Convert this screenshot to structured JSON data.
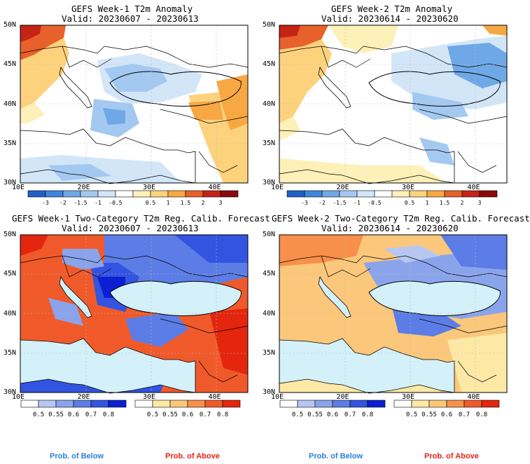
{
  "panels": [
    {
      "id": "p1",
      "title": "GEFS Week-1 T2m Anomaly",
      "valid": "Valid: 20230607 - 20230613"
    },
    {
      "id": "p2",
      "title": "GEFS Week-2 T2m Anomaly",
      "valid": "Valid: 20230614 - 20230620"
    },
    {
      "id": "p3",
      "title": "GEFS Week-1 Two-Category T2m Reg. Calib. Forecast",
      "valid": "Valid: 20230607 - 20230613"
    },
    {
      "id": "p4",
      "title": "GEFS Week-2 Two-Category T2m Reg. Calib. Forecast",
      "valid": "Valid: 20230614 - 20230620"
    }
  ],
  "lat_labels": [
    "50N",
    "45N",
    "40N",
    "35N",
    "30N"
  ],
  "lon_labels": [
    "10E",
    "20E",
    "30E",
    "40E"
  ],
  "anomaly_colorbar": {
    "labels": [
      "-3",
      "-2",
      "-1.5",
      "-1",
      "-0.5",
      "0.5",
      "1",
      "1.5",
      "2",
      "3"
    ],
    "colors": [
      "#1f5fc8",
      "#3f86da",
      "#6fa8e6",
      "#a4c9f1",
      "#d2e6f8",
      "#ffffff",
      "#fdf0b8",
      "#fdd27d",
      "#f7a843",
      "#e8602a",
      "#c42416",
      "#8b0a0a"
    ]
  },
  "prob_below_colorbar": {
    "labels": [
      "0.5",
      "0.55",
      "0.6",
      "0.7",
      "0.8"
    ],
    "colors": [
      "#ffffff",
      "#b7c7f2",
      "#8aa4ec",
      "#5c7de6",
      "#3254e0",
      "#0c1fd2"
    ]
  },
  "prob_above_colorbar": {
    "labels": [
      "0.5",
      "0.55",
      "0.6",
      "0.7",
      "0.8"
    ],
    "colors": [
      "#ffffff",
      "#fde8a5",
      "#fbc77a",
      "#f7904b",
      "#f05a2a",
      "#e3260d"
    ]
  },
  "footer": {
    "below": "Prob. of Below",
    "above": "Prob. of Above",
    "below_color": "#2a7fe0",
    "above_color": "#e8221a"
  }
}
